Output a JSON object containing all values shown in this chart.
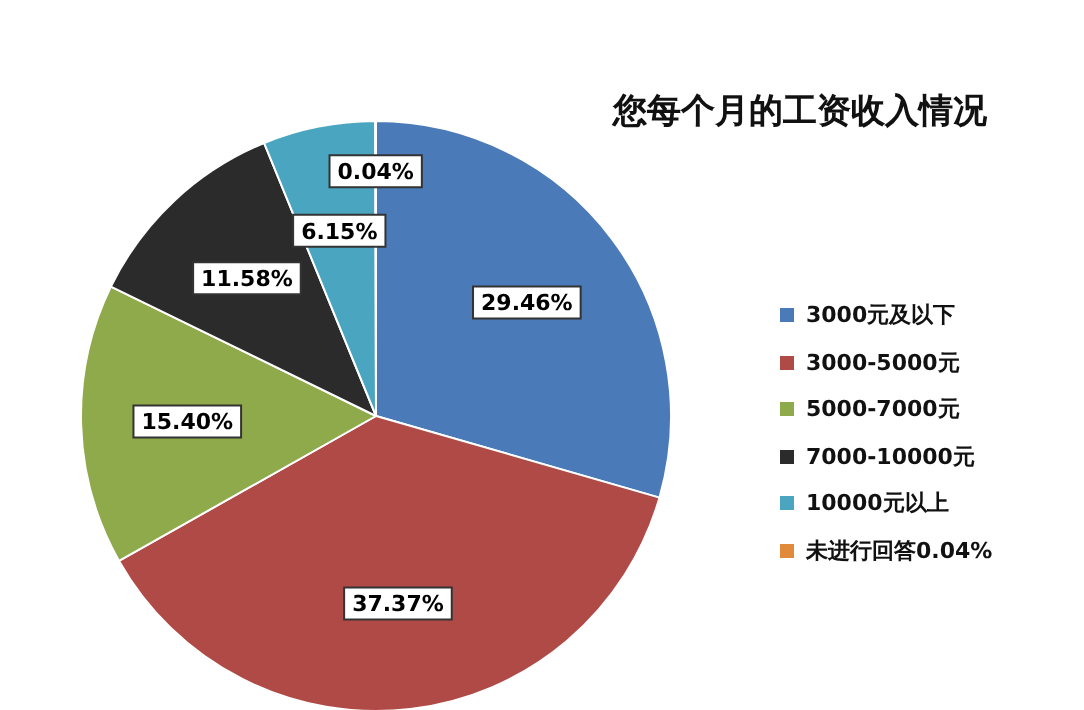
{
  "chart_data": {
    "type": "pie",
    "title": "您每个月的工资收入情况",
    "categories": [
      "3000元及以下",
      "3000-5000元",
      "5000-7000元",
      "7000-10000元",
      "10000元以上",
      "未进行回答0.04%"
    ],
    "values": [
      29.46,
      37.37,
      15.4,
      11.58,
      6.15,
      0.04
    ],
    "value_labels": [
      "29.46%",
      "37.37%",
      "15.40%",
      "11.58%",
      "6.15%",
      "0.04%"
    ],
    "colors": [
      "#4a7ab7",
      "#b04a47",
      "#8faa4b",
      "#2b2b2b",
      "#4aa6c0",
      "#e08a3a"
    ],
    "legend": "right"
  }
}
